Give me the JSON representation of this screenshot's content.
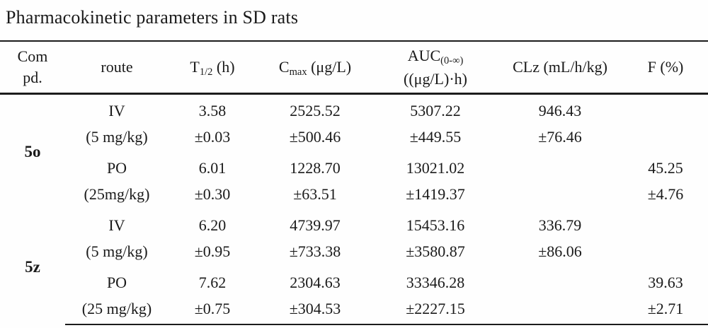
{
  "title": "Pharmacokinetic parameters in SD rats",
  "table": {
    "headers": {
      "compound_line1": "Com",
      "compound_line2": "pd.",
      "route": "route",
      "t12_base": "T",
      "t12_sub": "1/2",
      "t12_unit": " (h)",
      "cmax_base": "C",
      "cmax_sub": "max",
      "cmax_unit": " (μg/L)",
      "auc_base": "AUC",
      "auc_sub": "(0-∞)",
      "auc_unit_line2": "((μg/L)·h)",
      "clz": "CLz (mL/h/kg)",
      "f": "F (%)"
    },
    "groups": [
      {
        "compound": "5o",
        "rows": [
          {
            "route": "IV",
            "dose": "(5 mg/kg)",
            "t12": "3.58",
            "t12_sd": "±0.03",
            "cmax": "2525.52",
            "cmax_sd": "±500.46",
            "auc": "5307.22",
            "auc_sd": "±449.55",
            "clz": "946.43",
            "clz_sd": "±76.46",
            "f": "",
            "f_sd": ""
          },
          {
            "route": "PO",
            "dose": "(25mg/kg)",
            "t12": "6.01",
            "t12_sd": "±0.30",
            "cmax": "1228.70",
            "cmax_sd": "±63.51",
            "auc": "13021.02",
            "auc_sd": "±1419.37",
            "clz": "",
            "clz_sd": "",
            "f": "45.25",
            "f_sd": "±4.76"
          }
        ]
      },
      {
        "compound": "5z",
        "rows": [
          {
            "route": "IV",
            "dose": "(5 mg/kg)",
            "t12": "6.20",
            "t12_sd": "±0.95",
            "cmax": "4739.97",
            "cmax_sd": "±733.38",
            "auc": "15453.16",
            "auc_sd": "±3580.87",
            "clz": "336.79",
            "clz_sd": "±86.06",
            "f": "",
            "f_sd": ""
          },
          {
            "route": "PO",
            "dose": "(25 mg/kg)",
            "t12": "7.62",
            "t12_sd": "±0.75",
            "cmax": "2304.63",
            "cmax_sd": "±304.53",
            "auc": "33346.28",
            "auc_sd": "±2227.15",
            "clz": "",
            "clz_sd": "",
            "f": "39.63",
            "f_sd": "±2.71"
          }
        ]
      }
    ]
  }
}
